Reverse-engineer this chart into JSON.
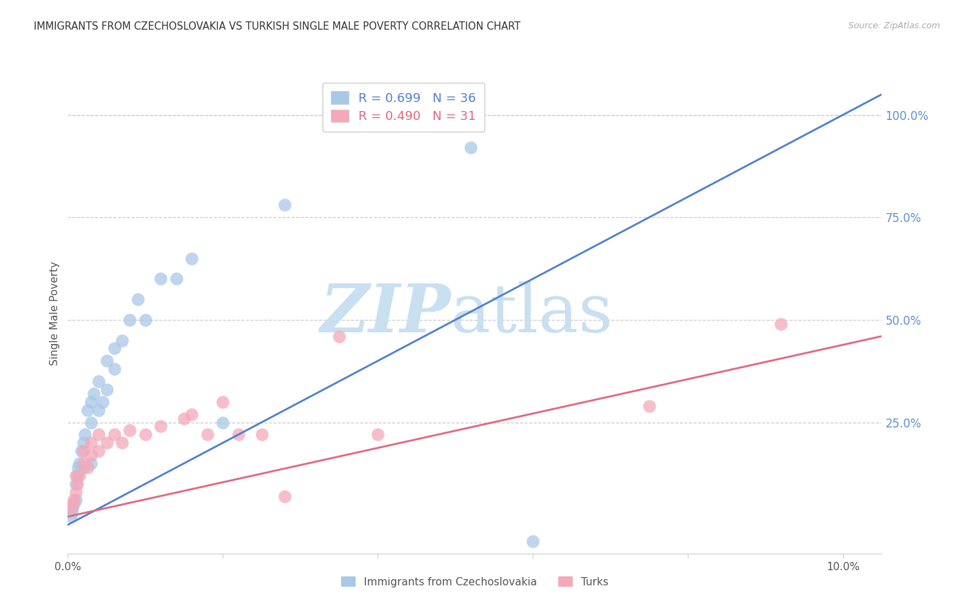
{
  "title": "IMMIGRANTS FROM CZECHOSLOVAKIA VS TURKISH SINGLE MALE POVERTY CORRELATION CHART",
  "source": "Source: ZipAtlas.com",
  "ylabel": "Single Male Poverty",
  "right_yticks": [
    "100.0%",
    "75.0%",
    "50.0%",
    "25.0%"
  ],
  "right_ytick_vals": [
    1.0,
    0.75,
    0.5,
    0.25
  ],
  "xlim": [
    0.0,
    0.105
  ],
  "ylim": [
    -0.07,
    1.1
  ],
  "blue_R": "R = 0.699",
  "blue_N": "N = 36",
  "pink_R": "R = 0.490",
  "pink_N": "N = 31",
  "blue_label": "Immigrants from Czechoslovakia",
  "pink_label": "Turks",
  "blue_color": "#A8C8E8",
  "pink_color": "#F4A8BA",
  "blue_line_color": "#5080D0",
  "pink_line_color": "#E06880",
  "right_axis_color": "#6090D0",
  "watermark_zip_color": "#C8E0F0",
  "watermark_atlas_color": "#C8E0F0",
  "background_color": "#ffffff",
  "grid_color": "#cccccc",
  "blue_line_x0": 0.0,
  "blue_line_y0": 0.0,
  "blue_line_x1": 0.105,
  "blue_line_y1": 1.05,
  "pink_line_x0": 0.0,
  "pink_line_y0": 0.02,
  "pink_line_x1": 0.105,
  "pink_line_y1": 0.46,
  "blue_points_x": [
    0.0004,
    0.0005,
    0.0006,
    0.0008,
    0.001,
    0.001,
    0.0012,
    0.0013,
    0.0015,
    0.0017,
    0.002,
    0.002,
    0.0022,
    0.0025,
    0.003,
    0.003,
    0.003,
    0.0033,
    0.004,
    0.004,
    0.0045,
    0.005,
    0.005,
    0.006,
    0.006,
    0.007,
    0.008,
    0.009,
    0.01,
    0.012,
    0.014,
    0.016,
    0.02,
    0.028,
    0.052,
    0.06
  ],
  "blue_points_y": [
    0.02,
    0.03,
    0.04,
    0.05,
    0.06,
    0.1,
    0.12,
    0.14,
    0.15,
    0.18,
    0.14,
    0.2,
    0.22,
    0.28,
    0.15,
    0.25,
    0.3,
    0.32,
    0.28,
    0.35,
    0.3,
    0.33,
    0.4,
    0.38,
    0.43,
    0.45,
    0.5,
    0.55,
    0.5,
    0.6,
    0.6,
    0.65,
    0.25,
    0.78,
    0.92,
    -0.04
  ],
  "pink_points_x": [
    0.0004,
    0.0006,
    0.0008,
    0.001,
    0.001,
    0.0012,
    0.0015,
    0.002,
    0.002,
    0.0025,
    0.003,
    0.003,
    0.004,
    0.004,
    0.005,
    0.006,
    0.007,
    0.008,
    0.01,
    0.012,
    0.015,
    0.016,
    0.018,
    0.02,
    0.022,
    0.025,
    0.028,
    0.035,
    0.04,
    0.075,
    0.092
  ],
  "pink_points_y": [
    0.04,
    0.05,
    0.06,
    0.08,
    0.12,
    0.1,
    0.12,
    0.15,
    0.18,
    0.14,
    0.17,
    0.2,
    0.18,
    0.22,
    0.2,
    0.22,
    0.2,
    0.23,
    0.22,
    0.24,
    0.26,
    0.27,
    0.22,
    0.3,
    0.22,
    0.22,
    0.07,
    0.46,
    0.22,
    0.29,
    0.49
  ]
}
